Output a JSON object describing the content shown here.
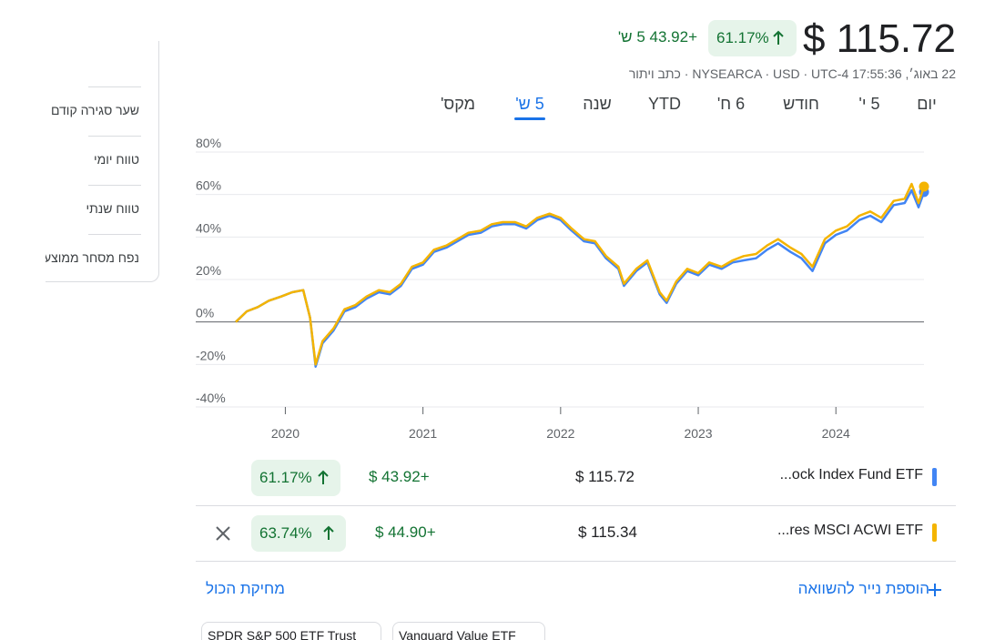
{
  "header": {
    "price": "$ 115.72",
    "change_percent": "61.17%",
    "change": "+43.92 5 ש'",
    "meta": "22 באוג׳, 17:55:36 NYSEARCA · USD · UTC-4 · כתב ויתור"
  },
  "tabs": [
    "יום",
    "5 י'",
    "חודש",
    "6 ח'",
    "YTD",
    "שנה",
    "5 ש'",
    "מקס'"
  ],
  "active_tab": 6,
  "sidebar": [
    "שער סגירה קודם",
    "טווח יומי",
    "טווח שנתי",
    "נפח מסחר ממוצע"
  ],
  "chart_data": {
    "type": "line",
    "x": [
      2019.64,
      2019.72,
      2019.8,
      2019.88,
      2019.97,
      2020.05,
      2020.13,
      2020.18,
      2020.22,
      2020.27,
      2020.35,
      2020.43,
      2020.51,
      2020.59,
      2020.68,
      2020.76,
      2020.84,
      2020.92,
      2021.0,
      2021.08,
      2021.17,
      2021.25,
      2021.33,
      2021.42,
      2021.5,
      2021.58,
      2021.67,
      2021.75,
      2021.83,
      2021.92,
      2022.0,
      2022.08,
      2022.17,
      2022.25,
      2022.33,
      2022.42,
      2022.46,
      2022.55,
      2022.63,
      2022.72,
      2022.77,
      2022.84,
      2022.92,
      2023.0,
      2023.08,
      2023.17,
      2023.25,
      2023.33,
      2023.42,
      2023.5,
      2023.58,
      2023.67,
      2023.75,
      2023.83,
      2023.92,
      2024.0,
      2024.08,
      2024.17,
      2024.25,
      2024.33,
      2024.42,
      2024.5,
      2024.55,
      2024.6,
      2024.64
    ],
    "series": [
      {
        "name": "...ock Index Fund ETF",
        "color": "#4285f4",
        "values": [
          0,
          5,
          7,
          10,
          12,
          14,
          15,
          2,
          -21,
          -10,
          -4,
          5,
          7,
          11,
          14,
          13,
          17,
          25,
          27,
          33,
          35,
          38,
          41,
          42,
          45,
          46,
          46,
          44,
          48,
          50,
          48,
          43,
          38,
          37,
          30,
          25,
          17,
          24,
          28,
          13,
          9,
          18,
          24,
          22,
          27,
          25,
          28,
          29,
          30,
          34,
          37,
          33,
          30,
          24,
          37,
          41,
          43,
          48,
          50,
          47,
          55,
          56,
          62,
          54,
          61.17
        ]
      },
      {
        "name": "...res MSCI ACWI ETF",
        "color": "#f4b400",
        "values": [
          0,
          5,
          7,
          10,
          12,
          14,
          15,
          2,
          -20,
          -9,
          -3,
          6,
          8,
          12,
          15,
          14,
          18,
          26,
          28,
          34,
          36,
          39,
          42,
          43,
          46,
          47,
          47,
          45,
          49,
          51,
          49,
          44,
          39,
          38,
          31,
          26,
          18,
          25,
          29,
          14,
          10,
          19,
          25,
          23,
          28,
          26,
          29,
          31,
          32,
          36,
          39,
          35,
          32,
          26,
          39,
          43,
          45,
          50,
          52,
          49,
          57,
          58,
          65,
          56,
          63.74
        ]
      }
    ],
    "xlim": [
      2019.64,
      2024.64
    ],
    "xticks": [
      2020,
      2021,
      2022,
      2023,
      2024
    ],
    "ylim": [
      -40,
      80
    ],
    "yticks": [
      {
        "value": -40,
        "label": "-40%"
      },
      {
        "value": -20,
        "label": "-20%"
      },
      {
        "value": 0,
        "label": "0%"
      },
      {
        "value": 20,
        "label": "20%"
      },
      {
        "value": 40,
        "label": "40%"
      },
      {
        "value": 60,
        "label": "60%"
      },
      {
        "value": 80,
        "label": "80%"
      }
    ],
    "grid": true
  },
  "comparison": {
    "rows": [
      {
        "name": "...ock Index Fund ETF",
        "price": "$ 115.72",
        "change": "$ 43.92+",
        "change_percent": "61.17%"
      },
      {
        "name": "...res MSCI ACWI ETF",
        "price": "$ 115.34",
        "change": "$ 44.90+",
        "change_percent": "63.74%"
      }
    ],
    "clear_all": "מחיקת הכול",
    "add": "הוספת נייר להשוואה",
    "suggestions": [
      "SPDR S&P 500 ETF Trust",
      "Vanguard Value ETF"
    ]
  }
}
